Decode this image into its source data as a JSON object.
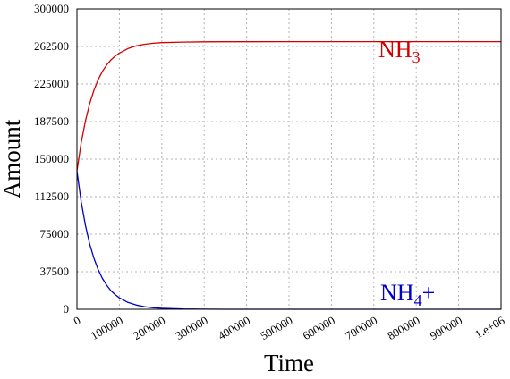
{
  "chart_data": {
    "type": "line",
    "title": "",
    "xlabel": "Time",
    "ylabel": "Amount",
    "xlim": [
      0,
      1000000
    ],
    "ylim": [
      0,
      300000
    ],
    "grid": true,
    "x_ticks": [
      "0",
      "100000",
      "200000",
      "300000",
      "400000",
      "500000",
      "600000",
      "700000",
      "800000",
      "900000",
      "1.e+06"
    ],
    "y_ticks": [
      "0",
      "37500",
      "75000",
      "112500",
      "150000",
      "187500",
      "225000",
      "262500",
      "300000"
    ],
    "x": [
      0,
      10000,
      20000,
      30000,
      40000,
      50000,
      60000,
      70000,
      80000,
      90000,
      100000,
      120000,
      140000,
      160000,
      180000,
      200000,
      250000,
      300000,
      350000,
      400000,
      500000,
      600000,
      700000,
      800000,
      900000,
      1000000
    ],
    "series": [
      {
        "name": "NH3",
        "label_main": "NH",
        "label_sub": "3",
        "label_suffix": "",
        "color": "#d40000",
        "values": [
          138000,
          166200,
          188200,
          205400,
          218800,
          229400,
          237600,
          244000,
          249000,
          252900,
          255900,
          260400,
          263100,
          264700,
          265700,
          266300,
          266900,
          267100,
          267200,
          267200,
          267300,
          267300,
          267300,
          267300,
          267300,
          267300
        ]
      },
      {
        "name": "NH4+",
        "label_main": "NH",
        "label_sub": "4",
        "label_suffix": "+",
        "color": "#0000c8",
        "values": [
          138000,
          107600,
          83800,
          65300,
          50900,
          39600,
          30900,
          24100,
          18700,
          14600,
          11400,
          6900,
          4200,
          2600,
          1500,
          950,
          270,
          80,
          20,
          10,
          0,
          0,
          0,
          0,
          0,
          0
        ]
      }
    ]
  }
}
